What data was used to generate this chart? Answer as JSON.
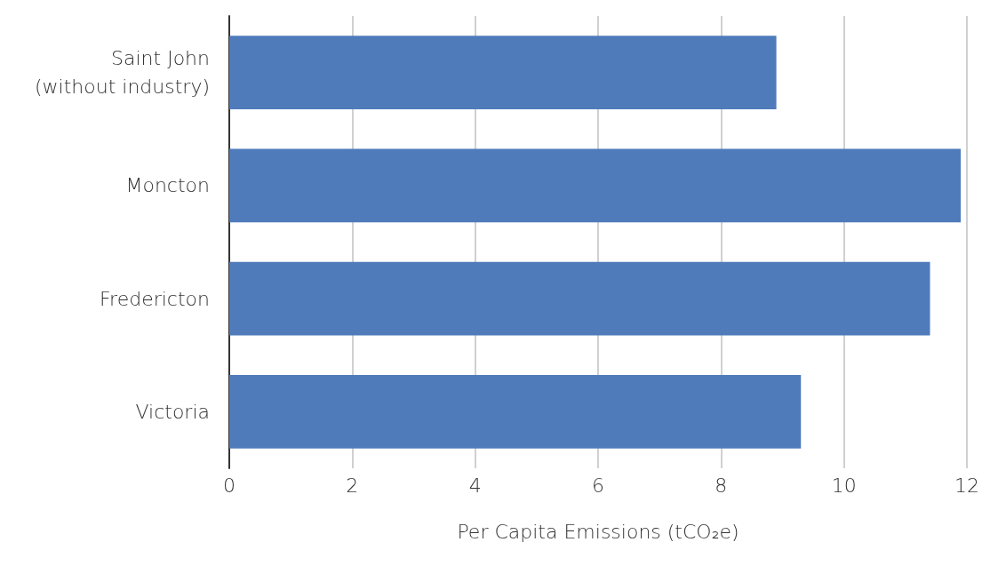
{
  "chart_data": {
    "type": "bar",
    "orientation": "horizontal",
    "xlabel": "Per Capita Emissions (tCO₂e)",
    "categories": [
      "Saint John\n(without industry)",
      "Moncton",
      "Fredericton",
      "Victoria"
    ],
    "values": [
      8.9,
      11.9,
      11.4,
      9.3
    ],
    "color": "#4f7bbb",
    "xlim": [
      0,
      12
    ],
    "xticks": [
      0,
      2,
      4,
      6,
      8,
      10,
      12
    ],
    "grid": "x"
  }
}
